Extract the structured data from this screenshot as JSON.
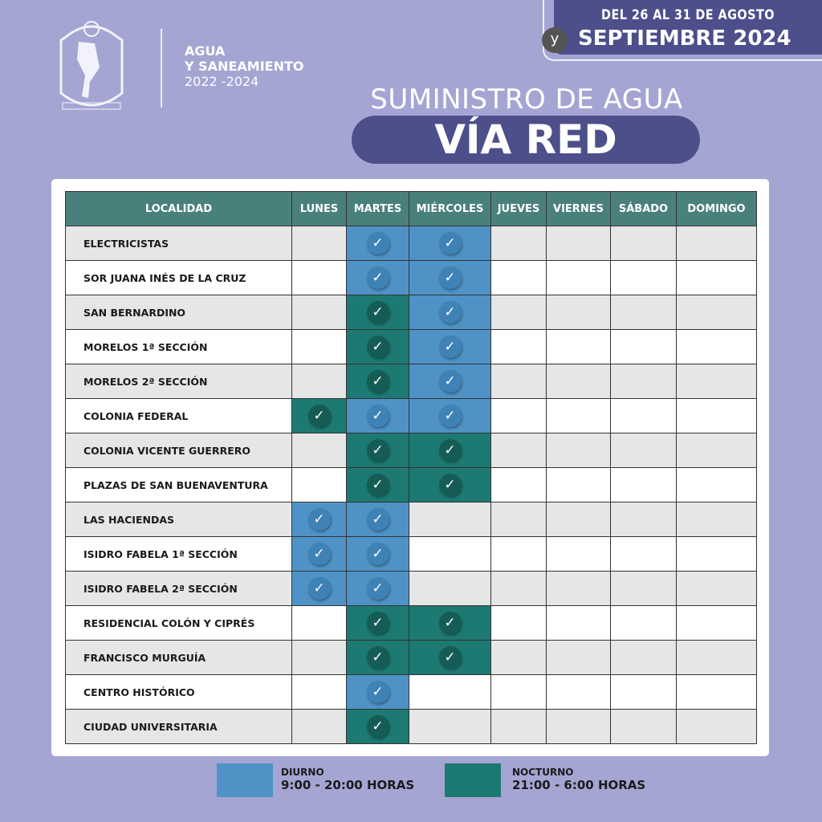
{
  "header": {
    "org_line1": "AGUA",
    "org_line2": "Y SANEAMIENTO",
    "org_years": "2022 -2024",
    "logo_text": "2022 - 2024",
    "date_line1": "DEL 26 AL 31 DE AGOSTO",
    "date_connector": "y",
    "date_line2": "SEPTIEMBRE 2024",
    "subtitle": "SUMINISTRO DE AGUA",
    "title": "VÍA RED"
  },
  "colors": {
    "diurno": "#4f93c6",
    "nocturno": "#1d7a72",
    "background": "#a5a5d4",
    "navy": "#4c4f8a"
  },
  "table": {
    "columns": [
      "LOCALIDAD",
      "LUNES",
      "MARTES",
      "MIÉRCOLES",
      "JUEVES",
      "VIERNES",
      "SÁBADO",
      "DOMINGO"
    ],
    "rows": [
      {
        "name": "ELECTRICISTAS",
        "days": [
          "",
          "D",
          "D",
          "",
          "",
          "",
          ""
        ]
      },
      {
        "name": "SOR JUANA INÉS DE LA CRUZ",
        "days": [
          "",
          "D",
          "D",
          "",
          "",
          "",
          ""
        ]
      },
      {
        "name": "SAN BERNARDINO",
        "days": [
          "",
          "N",
          "D",
          "",
          "",
          "",
          ""
        ]
      },
      {
        "name": "MORELOS 1ª SECCIÓN",
        "days": [
          "",
          "N",
          "D",
          "",
          "",
          "",
          ""
        ]
      },
      {
        "name": "MORELOS 2ª SECCIÓN",
        "days": [
          "",
          "N",
          "D",
          "",
          "",
          "",
          ""
        ]
      },
      {
        "name": "COLONIA FEDERAL",
        "days": [
          "N",
          "D",
          "D",
          "",
          "",
          "",
          ""
        ]
      },
      {
        "name": "COLONIA VICENTE GUERRERO",
        "days": [
          "",
          "N",
          "N",
          "",
          "",
          "",
          ""
        ]
      },
      {
        "name": "PLAZAS DE SAN BUENAVENTURA",
        "days": [
          "",
          "N",
          "N",
          "",
          "",
          "",
          ""
        ]
      },
      {
        "name": "LAS HACIENDAS",
        "days": [
          "D",
          "D",
          "",
          "",
          "",
          "",
          ""
        ]
      },
      {
        "name": "ISIDRO FABELA 1ª SECCIÓN",
        "days": [
          "D",
          "D",
          "",
          "",
          "",
          "",
          ""
        ]
      },
      {
        "name": "ISIDRO FABELA 2ª SECCIÓN",
        "days": [
          "D",
          "D",
          "",
          "",
          "",
          "",
          ""
        ]
      },
      {
        "name": "RESIDENCIAL COLÓN Y CIPRÉS",
        "days": [
          "",
          "N",
          "N",
          "",
          "",
          "",
          ""
        ]
      },
      {
        "name": "FRANCISCO MURGUÍA",
        "days": [
          "",
          "N",
          "N",
          "",
          "",
          "",
          ""
        ]
      },
      {
        "name": "CENTRO HISTÓRICO",
        "days": [
          "",
          "D",
          "",
          "",
          "",
          "",
          ""
        ]
      },
      {
        "name": "CIUDAD UNIVERSITARIA",
        "days": [
          "",
          "N",
          "",
          "",
          "",
          "",
          ""
        ]
      }
    ],
    "check_glyph": "✓"
  },
  "legend": {
    "diurno_label": "DIURNO",
    "diurno_hours": "9:00 - 20:00 HORAS",
    "nocturno_label": "NOCTURNO",
    "nocturno_hours": "21:00 - 6:00 HORAS"
  }
}
